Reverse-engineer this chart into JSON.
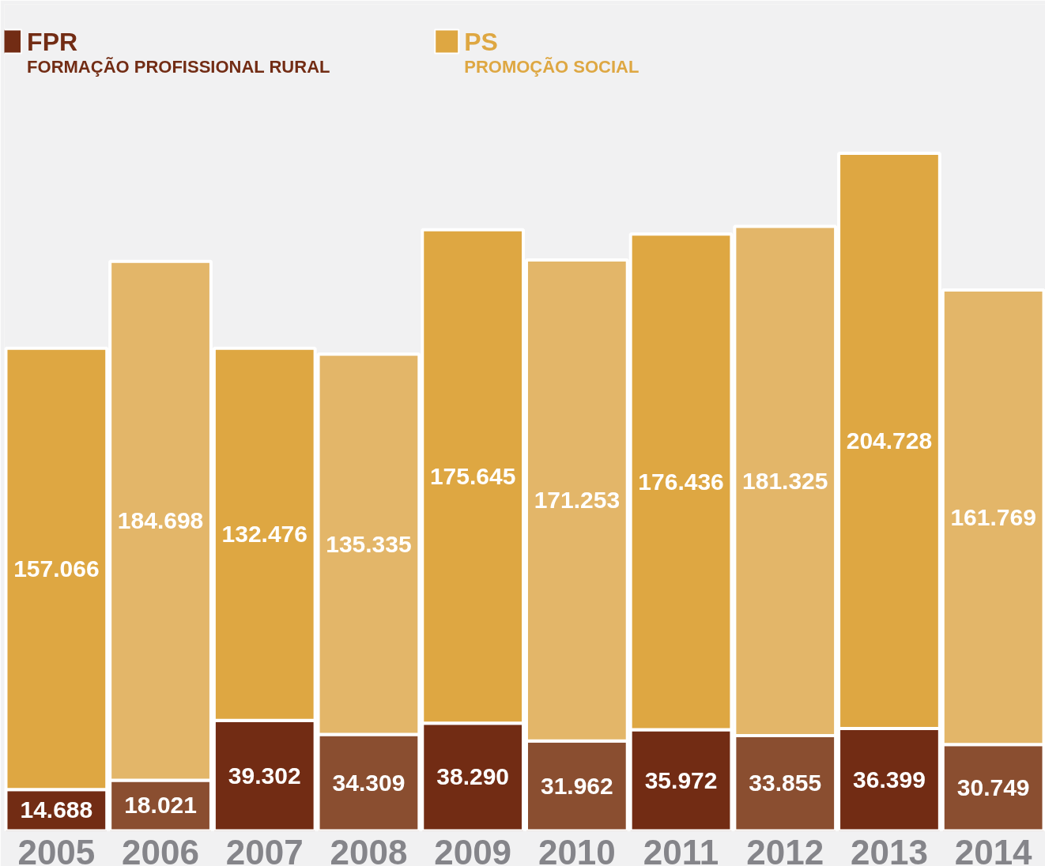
{
  "chart_data": {
    "type": "bar",
    "stacked": true,
    "legend": "top left",
    "categories": [
      "2005",
      "2006",
      "2007",
      "2008",
      "2009",
      "2010",
      "2011",
      "2012",
      "2013",
      "2014"
    ],
    "series": [
      {
        "name": "FPR\nFORMAÇÃO PROFISSIONAL RURAL",
        "color": "#722c14",
        "colors": [
          "#722c14",
          "#8a4e30",
          "#722c14",
          "#8a4e30",
          "#722c14",
          "#8a4e30",
          "#722c14",
          "#8a4e30",
          "#722c14",
          "#8a4e30"
        ],
        "values": [
          14688,
          18021,
          39302,
          34309,
          38290,
          31962,
          35972,
          33855,
          36399,
          30749
        ],
        "value_labels": [
          "14.688",
          "18.021",
          "39.302",
          "34.309",
          "38.290",
          "31.962",
          "35.972",
          "33.855",
          "36.399",
          "30.749"
        ]
      },
      {
        "name": "PS\nPROMOÇÃO SOCIAL",
        "color": "#dea742",
        "colors": [
          "#dea742",
          "#e3b669",
          "#dea742",
          "#e3b669",
          "#dea742",
          "#e3b669",
          "#dea742",
          "#e3b669",
          "#dea742",
          "#e3b669"
        ],
        "values": [
          157066,
          184698,
          132476,
          135335,
          175645,
          171253,
          176436,
          181325,
          204728,
          161769
        ],
        "value_labels": [
          "157.066",
          "184.698",
          "132.476",
          "135.335",
          "175.645",
          "171.253",
          "176.436",
          "181.325",
          "204.728",
          "161.769"
        ]
      }
    ]
  }
}
